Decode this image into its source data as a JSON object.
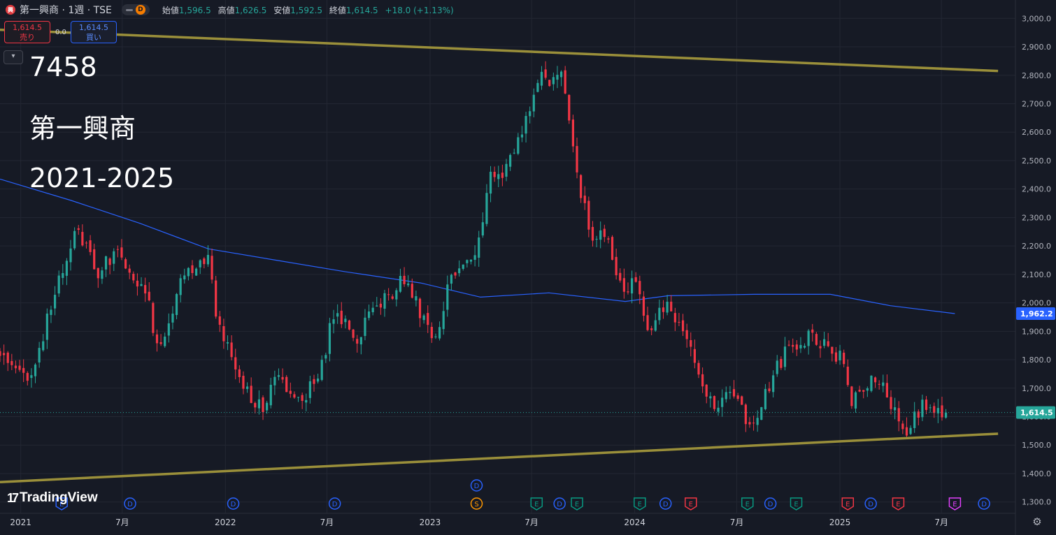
{
  "header": {
    "logo_text": "興",
    "symbol_title": "第一興商 · 1週 · TSE",
    "data_badge": "D",
    "ohlc": [
      {
        "label": "始値",
        "value": "1,596.5"
      },
      {
        "label": "高値",
        "value": "1,626.5"
      },
      {
        "label": "安値",
        "value": "1,592.5"
      },
      {
        "label": "終値",
        "value": "1,614.5"
      }
    ],
    "change": "+18.0 (+1.13%)"
  },
  "trade": {
    "sell_price": "1,614.5",
    "sell_label": "売り",
    "spread": "0.0",
    "buy_price": "1,614.5",
    "buy_label": "買い"
  },
  "annotations": [
    "7458",
    "第一興商",
    "2021-2025"
  ],
  "branding": {
    "name": "TradingView"
  },
  "colors": {
    "up": "#26a69a",
    "down": "#f23645",
    "ma": "#2962ff",
    "trendline": "#9a8f3a",
    "bg": "#161a25",
    "grid": "#232733"
  },
  "icons": {
    "collapse": "chevron-down-icon",
    "settings": "gear-icon"
  },
  "chart_data": {
    "type": "candlestick",
    "interval": "1週",
    "y_axis_position": "right",
    "ylim": [
      1260,
      3040
    ],
    "y_ticks": [
      1300,
      1400,
      1500,
      1600,
      1700,
      1800,
      1900,
      2000,
      2100,
      2200,
      2300,
      2400,
      2500,
      2600,
      2700,
      2800,
      2900,
      3000
    ],
    "x_ticks": [
      {
        "label": "2021",
        "date": "2021-01-01"
      },
      {
        "label": "7月",
        "date": "2021-07-01"
      },
      {
        "label": "2022",
        "date": "2022-01-01"
      },
      {
        "label": "7月",
        "date": "2022-07-01"
      },
      {
        "label": "2023",
        "date": "2023-01-01"
      },
      {
        "label": "7月",
        "date": "2023-07-01"
      },
      {
        "label": "2024",
        "date": "2024-01-01"
      },
      {
        "label": "7月",
        "date": "2024-07-01"
      },
      {
        "label": "2025",
        "date": "2025-01-01"
      },
      {
        "label": "7月",
        "date": "2025-07-01"
      }
    ],
    "xlim": [
      "2020-11-25",
      "2025-11-10"
    ],
    "price_anchors": [
      {
        "date": "2020-11-25",
        "price": 1840
      },
      {
        "date": "2021-01-15",
        "price": 1720
      },
      {
        "date": "2021-03-01",
        "price": 2020
      },
      {
        "date": "2021-04-10",
        "price": 2250
      },
      {
        "date": "2021-05-20",
        "price": 2100
      },
      {
        "date": "2021-06-20",
        "price": 2190
      },
      {
        "date": "2021-08-10",
        "price": 2050
      },
      {
        "date": "2021-09-05",
        "price": 1830
      },
      {
        "date": "2021-10-20",
        "price": 2100
      },
      {
        "date": "2021-12-01",
        "price": 2150
      },
      {
        "date": "2021-12-20",
        "price": 1920
      },
      {
        "date": "2022-02-01",
        "price": 1720
      },
      {
        "date": "2022-03-10",
        "price": 1610
      },
      {
        "date": "2022-04-05",
        "price": 1770
      },
      {
        "date": "2022-05-10",
        "price": 1640
      },
      {
        "date": "2022-06-20",
        "price": 1760
      },
      {
        "date": "2022-07-15",
        "price": 1980
      },
      {
        "date": "2022-08-20",
        "price": 1870
      },
      {
        "date": "2022-10-01",
        "price": 1990
      },
      {
        "date": "2022-11-15",
        "price": 2080
      },
      {
        "date": "2022-12-20",
        "price": 1950
      },
      {
        "date": "2023-01-10",
        "price": 1880
      },
      {
        "date": "2023-02-10",
        "price": 2100
      },
      {
        "date": "2023-03-25",
        "price": 2200
      },
      {
        "date": "2023-04-20",
        "price": 2460
      },
      {
        "date": "2023-05-15",
        "price": 2470
      },
      {
        "date": "2023-06-10",
        "price": 2580
      },
      {
        "date": "2023-07-01",
        "price": 2720
      },
      {
        "date": "2023-07-20",
        "price": 2810
      },
      {
        "date": "2023-08-05",
        "price": 2740
      },
      {
        "date": "2023-08-20",
        "price": 2860
      },
      {
        "date": "2023-09-05",
        "price": 2640
      },
      {
        "date": "2023-09-25",
        "price": 2400
      },
      {
        "date": "2023-10-20",
        "price": 2210
      },
      {
        "date": "2023-11-10",
        "price": 2240
      },
      {
        "date": "2023-12-10",
        "price": 2050
      },
      {
        "date": "2024-01-05",
        "price": 2080
      },
      {
        "date": "2024-01-25",
        "price": 1920
      },
      {
        "date": "2024-03-01",
        "price": 1990
      },
      {
        "date": "2024-04-10",
        "price": 1820
      },
      {
        "date": "2024-05-20",
        "price": 1640
      },
      {
        "date": "2024-06-25",
        "price": 1700
      },
      {
        "date": "2024-07-25",
        "price": 1540
      },
      {
        "date": "2024-08-20",
        "price": 1680
      },
      {
        "date": "2024-09-25",
        "price": 1830
      },
      {
        "date": "2024-11-01",
        "price": 1880
      },
      {
        "date": "2024-12-10",
        "price": 1840
      },
      {
        "date": "2025-01-05",
        "price": 1810
      },
      {
        "date": "2025-01-20",
        "price": 1660
      },
      {
        "date": "2025-02-25",
        "price": 1720
      },
      {
        "date": "2025-03-25",
        "price": 1690
      },
      {
        "date": "2025-04-15",
        "price": 1600
      },
      {
        "date": "2025-05-01",
        "price": 1550
      },
      {
        "date": "2025-05-25",
        "price": 1640
      },
      {
        "date": "2025-06-20",
        "price": 1620
      },
      {
        "date": "2025-07-15",
        "price": 1614.5
      }
    ],
    "moving_average": [
      {
        "date": "2020-11-25",
        "price": 2435
      },
      {
        "date": "2021-04-01",
        "price": 2360
      },
      {
        "date": "2021-08-01",
        "price": 2280
      },
      {
        "date": "2021-12-01",
        "price": 2190
      },
      {
        "date": "2022-04-01",
        "price": 2150
      },
      {
        "date": "2022-08-01",
        "price": 2110
      },
      {
        "date": "2022-12-15",
        "price": 2070
      },
      {
        "date": "2023-04-01",
        "price": 2020
      },
      {
        "date": "2023-08-01",
        "price": 2035
      },
      {
        "date": "2023-12-15",
        "price": 2005
      },
      {
        "date": "2024-03-01",
        "price": 2025
      },
      {
        "date": "2024-08-01",
        "price": 2030
      },
      {
        "date": "2024-12-15",
        "price": 2030
      },
      {
        "date": "2025-04-01",
        "price": 1990
      },
      {
        "date": "2025-07-25",
        "price": 1962.2
      }
    ],
    "trendlines": [
      {
        "name": "upper",
        "from": {
          "date": "2020-11-25",
          "price": 2960
        },
        "to": {
          "date": "2025-10-10",
          "price": 2815
        }
      },
      {
        "name": "lower",
        "from": {
          "date": "2020-11-25",
          "price": 1370
        },
        "to": {
          "date": "2025-10-10",
          "price": 1540
        }
      }
    ],
    "last_price": {
      "value": 1614.5,
      "label": "1,614.5"
    },
    "ma_value": {
      "value": 1962.2,
      "label": "1,962.2"
    },
    "events": [
      {
        "date": "2021-03-15",
        "type": "E",
        "color": "blue"
      },
      {
        "date": "2021-07-15",
        "type": "D",
        "color": "blue"
      },
      {
        "date": "2022-01-15",
        "type": "D",
        "color": "blue"
      },
      {
        "date": "2022-07-15",
        "type": "D",
        "color": "blue"
      },
      {
        "date": "2023-03-25",
        "type": "D",
        "color": "blue",
        "row": 1
      },
      {
        "date": "2023-03-25",
        "type": "S",
        "color": "orange"
      },
      {
        "date": "2023-07-10",
        "type": "E",
        "color": "green"
      },
      {
        "date": "2023-08-20",
        "type": "D",
        "color": "blue"
      },
      {
        "date": "2023-09-20",
        "type": "E",
        "color": "green"
      },
      {
        "date": "2024-01-10",
        "type": "E",
        "color": "green"
      },
      {
        "date": "2024-02-25",
        "type": "D",
        "color": "blue"
      },
      {
        "date": "2024-04-10",
        "type": "E",
        "color": "red"
      },
      {
        "date": "2024-07-20",
        "type": "E",
        "color": "green"
      },
      {
        "date": "2024-08-30",
        "type": "D",
        "color": "blue"
      },
      {
        "date": "2024-10-15",
        "type": "E",
        "color": "green"
      },
      {
        "date": "2025-01-15",
        "type": "E",
        "color": "red"
      },
      {
        "date": "2025-02-25",
        "type": "D",
        "color": "blue"
      },
      {
        "date": "2025-04-15",
        "type": "E",
        "color": "red"
      },
      {
        "date": "2025-07-25",
        "type": "E",
        "color": "purple"
      },
      {
        "date": "2025-09-15",
        "type": "D",
        "color": "blue"
      }
    ]
  }
}
